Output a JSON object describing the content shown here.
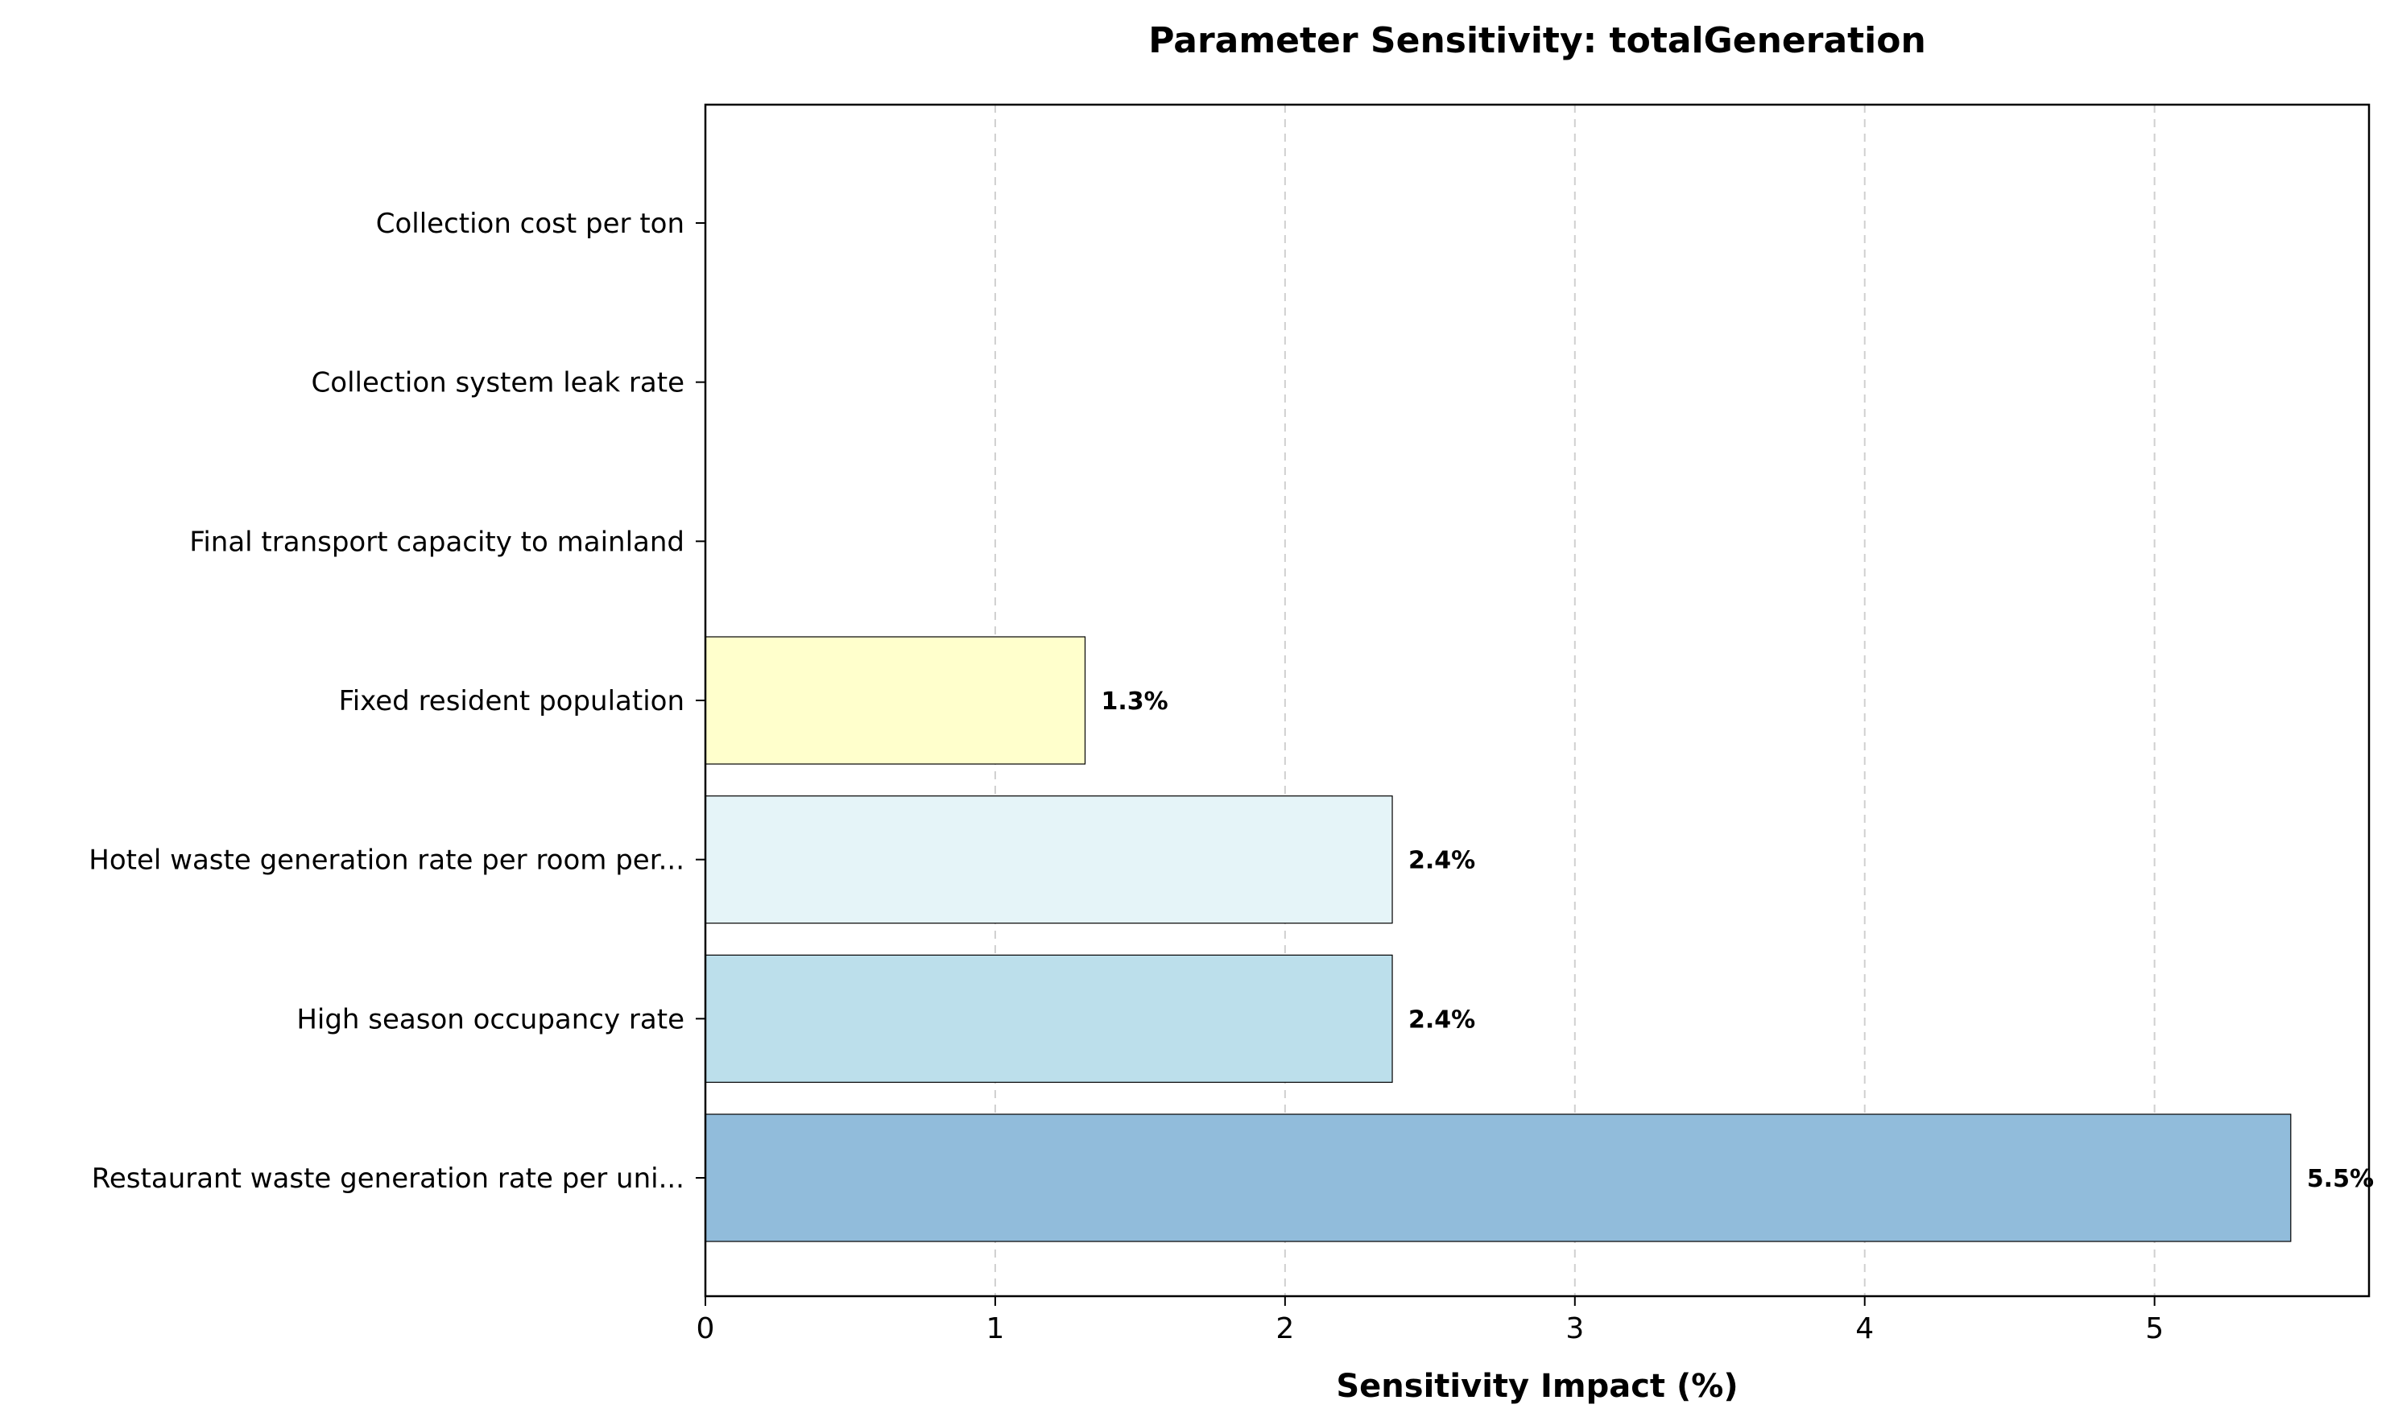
{
  "chart_data": {
    "type": "bar",
    "orientation": "horizontal",
    "title": "Parameter Sensitivity: totalGeneration",
    "xlabel": "Sensitivity Impact (%)",
    "ylabel": "",
    "xlim": [
      0,
      5.74
    ],
    "xticks": [
      "0",
      "1",
      "2",
      "3",
      "4",
      "5"
    ],
    "grid": "x-dashed",
    "categories": [
      "Restaurant waste generation rate per uni...",
      "High season occupancy rate",
      "Hotel waste generation rate per room per...",
      "Fixed resident population",
      "Final transport capacity to mainland",
      "Collection system leak rate",
      "Collection cost per ton"
    ],
    "values": [
      5.47,
      2.37,
      2.37,
      1.31,
      0,
      0,
      0
    ],
    "value_labels": [
      "5.5%",
      "2.4%",
      "2.4%",
      "1.3%",
      "",
      "",
      ""
    ],
    "colors": [
      "#91bcdb",
      "#bcdfeb",
      "#e5f4f8",
      "#ffffcc",
      "#fee090",
      "#fdae61",
      "#f46d43"
    ]
  }
}
